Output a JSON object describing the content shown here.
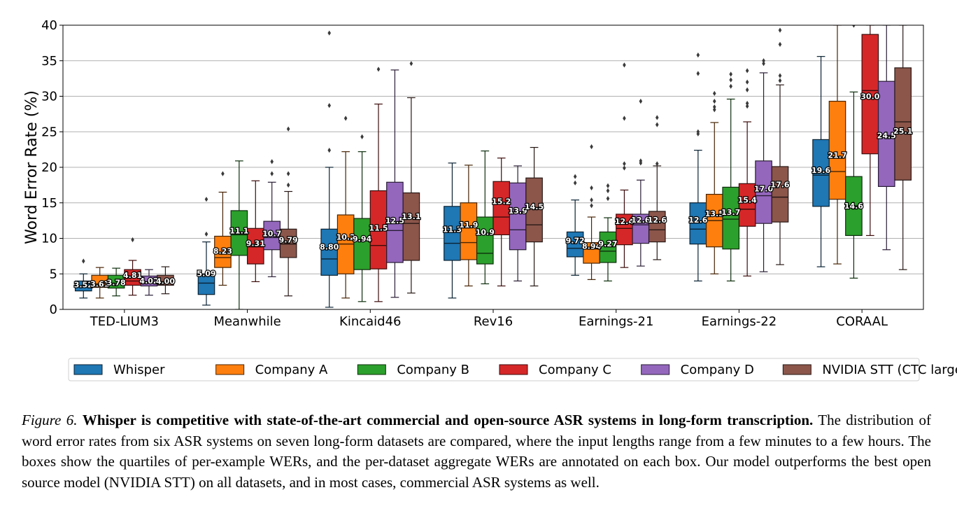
{
  "chart_data": {
    "type": "box",
    "ylabel": "Word Error Rate (%)",
    "ylim": [
      0,
      40
    ],
    "yticks": [
      "0",
      "5",
      "10",
      "15",
      "20",
      "25",
      "30",
      "35",
      "40"
    ],
    "grid": "horizontal",
    "legend_position": "bottom",
    "categories": [
      "TED-LIUM3",
      "Meanwhile",
      "Kincaid46",
      "Rev16",
      "Earnings-21",
      "Earnings-22",
      "CORAAL"
    ],
    "series": [
      {
        "name": "Whisper",
        "color": "#1f77b4",
        "boxes": [
          {
            "min": 1.6,
            "q1": 2.6,
            "median": 3.3,
            "q3": 4.0,
            "max": 5.0,
            "outliers": [
              6.8
            ],
            "label": "3.52"
          },
          {
            "min": 0.6,
            "q1": 2.1,
            "median": 3.7,
            "q3": 5.0,
            "max": 9.5,
            "outliers": [
              10.6,
              15.5
            ],
            "label": "5.09"
          },
          {
            "min": 0.3,
            "q1": 4.8,
            "median": 7.1,
            "q3": 11.3,
            "max": 20.0,
            "outliers": [
              22.4,
              28.7,
              38.9
            ],
            "label": "8.80"
          },
          {
            "min": 1.6,
            "q1": 6.9,
            "median": 9.3,
            "q3": 14.5,
            "max": 20.6,
            "outliers": [],
            "label": "11.3"
          },
          {
            "min": 4.8,
            "q1": 7.4,
            "median": 8.6,
            "q3": 10.9,
            "max": 15.4,
            "outliers": [
              17.8,
              18.7
            ],
            "label": "9.72"
          },
          {
            "min": 4.0,
            "q1": 9.2,
            "median": 11.3,
            "q3": 15.0,
            "max": 22.4,
            "outliers": [
              24.7,
              25.0,
              33.2,
              35.8
            ],
            "label": "12.6"
          },
          {
            "min": 6.0,
            "q1": 14.5,
            "median": 18.9,
            "q3": 23.9,
            "max": 35.6,
            "outliers": [],
            "label": "19.6"
          }
        ]
      },
      {
        "name": "Company A",
        "color": "#ff7f0e",
        "boxes": [
          {
            "min": 1.6,
            "q1": 3.1,
            "median": 3.6,
            "q3": 4.8,
            "max": 5.9,
            "outliers": [],
            "label": "3.61"
          },
          {
            "min": 3.4,
            "q1": 5.9,
            "median": 7.3,
            "q3": 10.3,
            "max": 16.5,
            "outliers": [
              19.1
            ],
            "label": "8.23"
          },
          {
            "min": 1.6,
            "q1": 5.0,
            "median": 9.2,
            "q3": 13.3,
            "max": 22.2,
            "outliers": [
              26.9
            ],
            "label": "10.2"
          },
          {
            "min": 3.3,
            "q1": 7.0,
            "median": 9.4,
            "q3": 15.0,
            "max": 20.3,
            "outliers": [],
            "label": "11.9"
          },
          {
            "min": 4.2,
            "q1": 6.5,
            "median": 8.5,
            "q3": 9.4,
            "max": 13.0,
            "outliers": [
              14.6,
              15.4,
              17.1,
              22.9
            ],
            "label": "8.94"
          },
          {
            "min": 5.0,
            "q1": 8.8,
            "median": 12.5,
            "q3": 16.2,
            "max": 26.3,
            "outliers": [
              28.1,
              28.5,
              29.3,
              30.4
            ],
            "label": "13.5"
          },
          {
            "min": 6.4,
            "q1": 15.5,
            "median": 19.4,
            "q3": 29.3,
            "max": 40.0,
            "outliers": [],
            "label": "21.7"
          }
        ]
      },
      {
        "name": "Company B",
        "color": "#2ca02c",
        "boxes": [
          {
            "min": 1.9,
            "q1": 3.0,
            "median": 3.7,
            "q3": 4.8,
            "max": 5.8,
            "outliers": [],
            "label": "3.78"
          },
          {
            "min": 0.0,
            "q1": 7.6,
            "median": 10.5,
            "q3": 13.9,
            "max": 20.9,
            "outliers": [],
            "label": "11.1"
          },
          {
            "min": 1.1,
            "q1": 5.6,
            "median": 9.8,
            "q3": 12.8,
            "max": 22.2,
            "outliers": [
              24.3
            ],
            "label": "9.94"
          },
          {
            "min": 3.6,
            "q1": 6.4,
            "median": 7.9,
            "q3": 13.0,
            "max": 22.3,
            "outliers": [],
            "label": "10.9"
          },
          {
            "min": 4.0,
            "q1": 6.6,
            "median": 8.2,
            "q3": 10.9,
            "max": 12.9,
            "outliers": [
              15.6,
              16.7,
              17.4
            ],
            "label": "9.27"
          },
          {
            "min": 4.0,
            "q1": 8.5,
            "median": 12.7,
            "q3": 17.2,
            "max": 29.6,
            "outliers": [
              31.4,
              32.3,
              33.1
            ],
            "label": "13.7"
          },
          {
            "min": 4.4,
            "q1": 10.4,
            "median": 14.6,
            "q3": 18.7,
            "max": 30.6,
            "outliers": [
              40.0
            ],
            "label": "14.6"
          }
        ]
      },
      {
        "name": "Company C",
        "color": "#d62728",
        "boxes": [
          {
            "min": 2.0,
            "q1": 3.4,
            "median": 4.0,
            "q3": 5.6,
            "max": 6.9,
            "outliers": [
              9.8
            ],
            "label": "4.81"
          },
          {
            "min": 3.9,
            "q1": 6.4,
            "median": 8.8,
            "q3": 11.4,
            "max": 18.1,
            "outliers": [],
            "label": "9.31"
          },
          {
            "min": 1.1,
            "q1": 5.7,
            "median": 9.0,
            "q3": 16.7,
            "max": 28.9,
            "outliers": [
              33.8
            ],
            "label": "11.5"
          },
          {
            "min": 3.3,
            "q1": 10.5,
            "median": 13.0,
            "q3": 18.0,
            "max": 21.3,
            "outliers": [],
            "label": "15.2"
          },
          {
            "min": 5.9,
            "q1": 9.1,
            "median": 11.4,
            "q3": 13.4,
            "max": 16.8,
            "outliers": [
              19.9,
              20.5,
              26.9,
              34.4
            ],
            "label": "12.4"
          },
          {
            "min": 4.7,
            "q1": 11.7,
            "median": 14.1,
            "q3": 17.7,
            "max": 26.4,
            "outliers": [
              28.6,
              29.0,
              30.9,
              32.0,
              33.6
            ],
            "label": "15.4"
          },
          {
            "min": 10.4,
            "q1": 21.9,
            "median": 30.8,
            "q3": 38.7,
            "max": 40.0,
            "outliers": [],
            "label": "30.0"
          }
        ]
      },
      {
        "name": "Company D",
        "color": "#9467bd",
        "boxes": [
          {
            "min": 2.0,
            "q1": 3.3,
            "median": 3.8,
            "q3": 4.7,
            "max": 5.6,
            "outliers": [],
            "label": "4.02"
          },
          {
            "min": 4.6,
            "q1": 8.4,
            "median": 10.1,
            "q3": 12.4,
            "max": 17.9,
            "outliers": [
              19.1,
              20.8
            ],
            "label": "10.7"
          },
          {
            "min": 1.7,
            "q1": 6.6,
            "median": 11.1,
            "q3": 17.9,
            "max": 33.7,
            "outliers": [],
            "label": "12.5"
          },
          {
            "min": 4.0,
            "q1": 8.4,
            "median": 11.2,
            "q3": 17.8,
            "max": 20.2,
            "outliers": [],
            "label": "13.9"
          },
          {
            "min": 6.1,
            "q1": 9.3,
            "median": 11.9,
            "q3": 13.4,
            "max": 18.2,
            "outliers": [
              20.6,
              20.9,
              29.3
            ],
            "label": "12.6"
          },
          {
            "min": 5.3,
            "q1": 12.1,
            "median": 16.0,
            "q3": 20.9,
            "max": 33.3,
            "outliers": [
              34.6,
              35.0
            ],
            "label": "17.0"
          },
          {
            "min": 8.4,
            "q1": 17.3,
            "median": 24.5,
            "q3": 32.1,
            "max": 40.0,
            "outliers": [],
            "label": "24.5"
          }
        ]
      },
      {
        "name": "NVIDIA STT (CTC large)",
        "color": "#8c564b",
        "boxes": [
          {
            "min": 2.2,
            "q1": 3.4,
            "median": 3.9,
            "q3": 4.8,
            "max": 6.0,
            "outliers": [],
            "label": "4.00"
          },
          {
            "min": 1.9,
            "q1": 7.3,
            "median": 9.2,
            "q3": 11.3,
            "max": 16.6,
            "outliers": [
              17.5,
              19.1,
              25.4
            ],
            "label": "9.79"
          },
          {
            "min": 2.3,
            "q1": 6.9,
            "median": 12.1,
            "q3": 16.4,
            "max": 29.8,
            "outliers": [
              34.6
            ],
            "label": "13.1"
          },
          {
            "min": 3.3,
            "q1": 9.5,
            "median": 11.9,
            "q3": 18.5,
            "max": 22.8,
            "outliers": [],
            "label": "14.5"
          },
          {
            "min": 7.0,
            "q1": 9.5,
            "median": 11.2,
            "q3": 13.8,
            "max": 20.2,
            "outliers": [
              20.5,
              26.0,
              27.0
            ],
            "label": "12.6"
          },
          {
            "min": 6.3,
            "q1": 12.3,
            "median": 15.8,
            "q3": 20.1,
            "max": 31.6,
            "outliers": [
              32.2,
              32.9,
              37.3,
              39.3
            ],
            "label": "17.6"
          },
          {
            "min": 5.6,
            "q1": 18.2,
            "median": 26.4,
            "q3": 34.0,
            "max": 40.0,
            "outliers": [],
            "label": "25.1"
          }
        ]
      }
    ]
  },
  "caption": {
    "figure_label": "Figure 6.",
    "lead": "Whisper is competitive with state-of-the-art commercial and open-source ASR systems in long-form transcription.",
    "body": "The distribution of word error rates from six ASR systems on seven long-form datasets are compared, where the input lengths range from a few minutes to a few hours. The boxes show the quartiles of per-example WERs, and the per-dataset aggregate WERs are annotated on each box. Our model outperforms the best open source model (NVIDIA STT) on all datasets, and in most cases, commercial ASR systems as well."
  }
}
